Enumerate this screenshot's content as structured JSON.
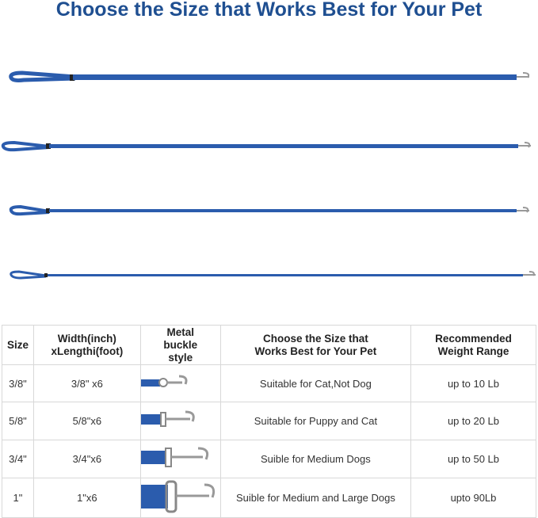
{
  "title": "Choose the Size that Works Best for Your Pet",
  "colors": {
    "title": "#1f4f91",
    "leash": "#2b5cad"
  },
  "leashes": [
    {
      "size": "3/8\""
    },
    {
      "size": "5/8\""
    },
    {
      "size": "3/4\""
    },
    {
      "size": "1\""
    }
  ],
  "table": {
    "headers": [
      "Size",
      "Width(inch) xLengthi(foot)",
      "Metal buckle style",
      "Choose the Size that Works Best for Your Pet",
      "Recommended Weight Range"
    ],
    "rows": [
      {
        "size": "3/8\"",
        "dims": "3/8\" x6",
        "desc": "Suitable for Cat,Not Dog",
        "weight": "up to 10 Lb"
      },
      {
        "size": "5/8\"",
        "dims": "5/8\"x6",
        "desc": "Suitable for Puppy and Cat",
        "weight": "up to 20 Lb"
      },
      {
        "size": "3/4\"",
        "dims": "3/4\"x6",
        "desc": "Suible for Medium Dogs",
        "weight": "up to 50 Lb"
      },
      {
        "size": "1\"",
        "dims": "1\"x6",
        "desc": "Suible for Medium and Large Dogs",
        "weight": "upto 90Lb"
      }
    ]
  }
}
